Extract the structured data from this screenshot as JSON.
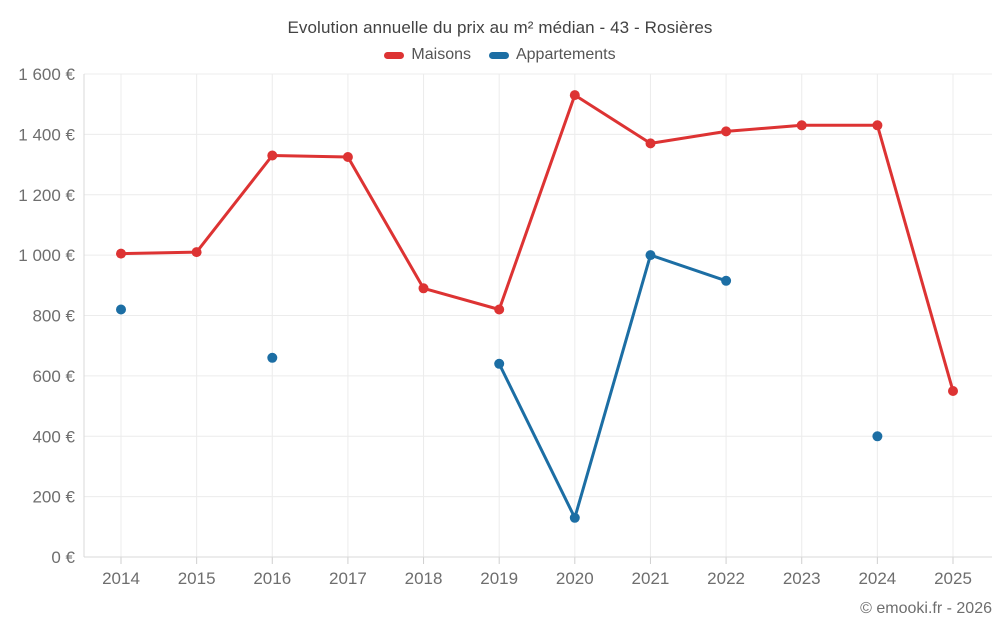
{
  "footer": "© emooki.fr - 2026",
  "colors": {
    "maisons": "#dd3333",
    "appartements": "#1c6ea4",
    "grid": "#ececec",
    "axis": "#d9d9d9",
    "tick": "#cfcfcf",
    "tick_text": "#6e6e6e",
    "title_text": "#424242",
    "background": "#ffffff"
  },
  "chart_data": {
    "type": "line",
    "title": "Evolution annuelle du prix au m² médian - 43 - Rosières",
    "x": [
      2014,
      2015,
      2016,
      2017,
      2018,
      2019,
      2020,
      2021,
      2022,
      2023,
      2024,
      2025
    ],
    "series": [
      {
        "name": "Maisons",
        "color": "#dd3333",
        "values": [
          1005,
          1010,
          1330,
          1325,
          890,
          820,
          1530,
          1370,
          1410,
          1430,
          1430,
          550
        ]
      },
      {
        "name": "Appartements",
        "color": "#1c6ea4",
        "values": [
          820,
          null,
          660,
          null,
          null,
          640,
          130,
          1000,
          915,
          null,
          400,
          null
        ]
      }
    ],
    "xlabel": "",
    "ylabel": "",
    "ylim": [
      0,
      1600
    ],
    "ytick_interval": 200,
    "ytick_labels": [
      "0 €",
      "200 €",
      "400 €",
      "600 €",
      "800 €",
      "1 000 €",
      "1 200 €",
      "1 400 €",
      "1 600 €"
    ],
    "grid": true,
    "legend_position": "top",
    "currency": "€"
  }
}
